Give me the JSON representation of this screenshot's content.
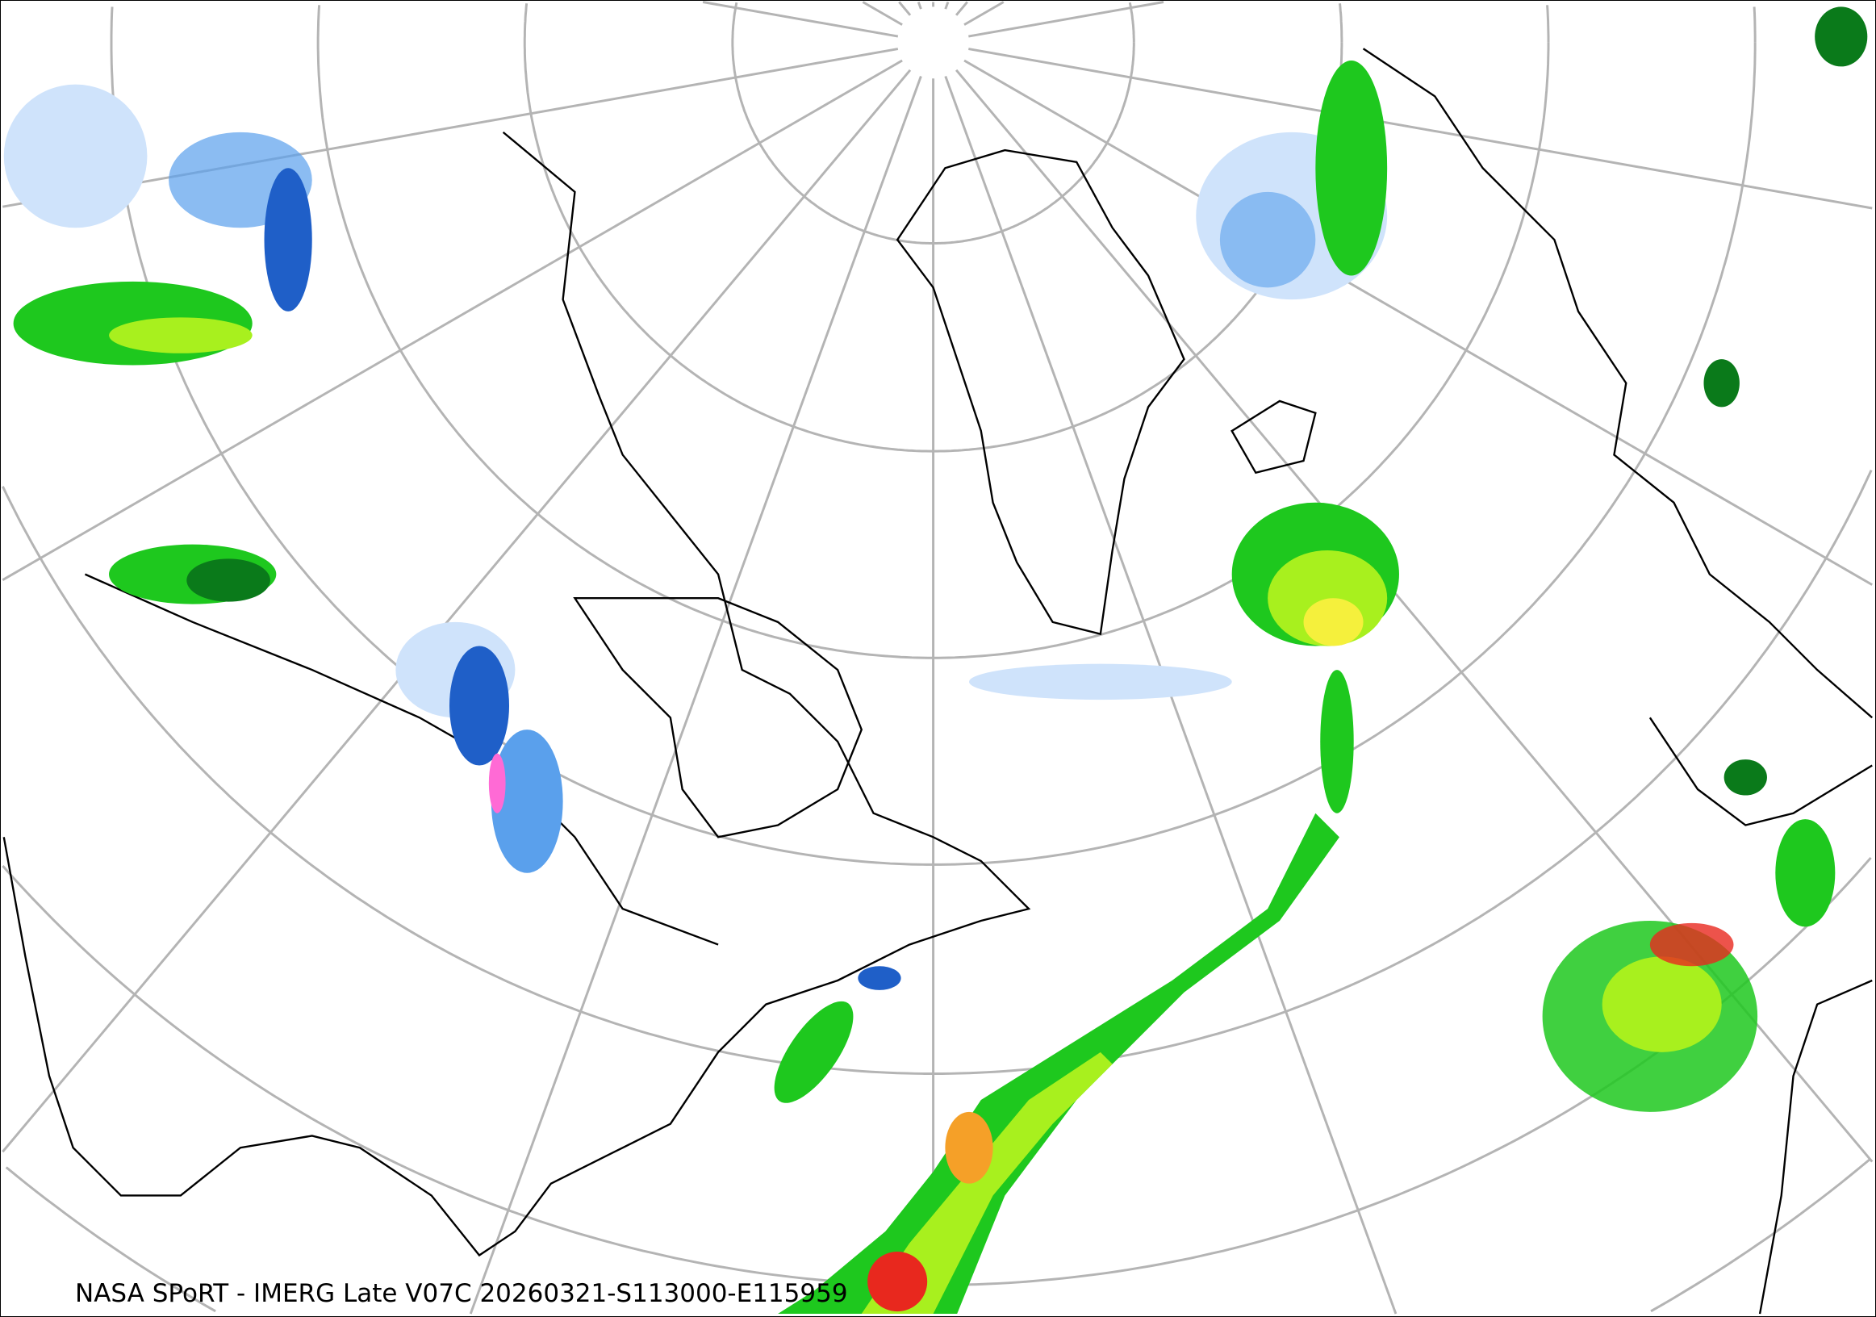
{
  "map": {
    "caption": "NASA SPoRT - IMERG Late V07C 20260321-S113000-E115959",
    "projection": "north-polar stereographic",
    "graticule_color": "#b4b4b4",
    "coastline_color": "#000000",
    "precip_colors": {
      "light_blue": "#cfe3fb",
      "blue": "#5aa0ec",
      "dark_blue": "#1f5fc8",
      "pink": "#ff6ad5",
      "dark_green": "#0a7a1a",
      "green": "#1ec81e",
      "light_green": "#a8f01e",
      "yellow": "#f5f03c",
      "orange": "#f5a028",
      "red": "#e8281e"
    }
  }
}
